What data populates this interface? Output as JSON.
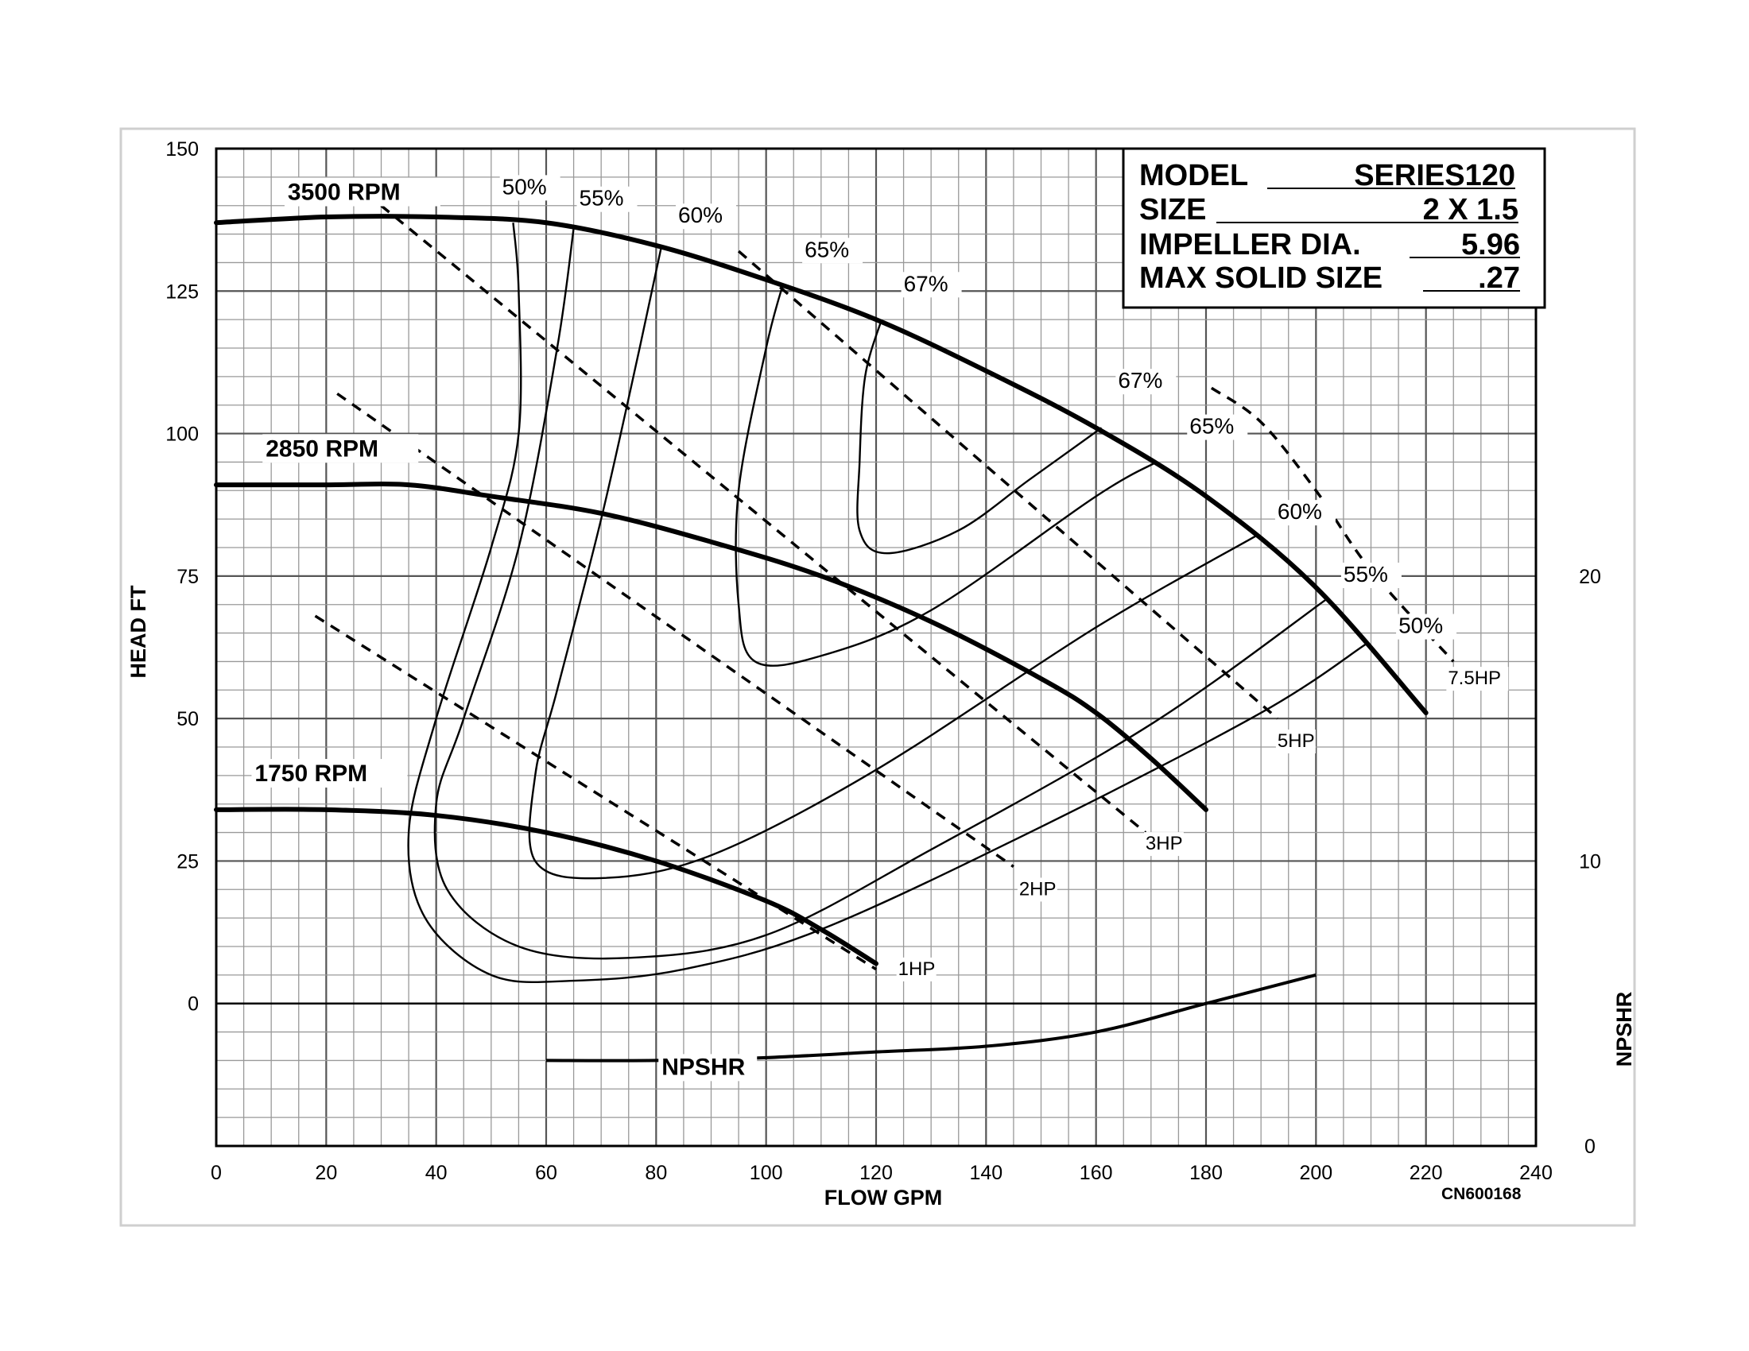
{
  "chart_data": {
    "type": "line",
    "xlabel": "FLOW GPM",
    "ylabel": "HEAD FT",
    "y2label": "NPSHR",
    "xlim": [
      0,
      240
    ],
    "ylim": [
      -25,
      150
    ],
    "y2lim": [
      0,
      35
    ],
    "xticks": [
      "0",
      "20",
      "40",
      "60",
      "80",
      "100",
      "120",
      "140",
      "160",
      "180",
      "200",
      "220",
      "240"
    ],
    "yticks": [
      "150",
      "125",
      "100",
      "75",
      "50",
      "25",
      "0"
    ],
    "y2ticks": [
      "20",
      "10",
      "0"
    ],
    "grid": true,
    "info_box": {
      "model_label": "MODEL",
      "model_value": "SERIES120",
      "size_label": "SIZE",
      "size_value": "2 X 1.5",
      "impeller_label": "IMPELLER DIA.",
      "impeller_value": "5.96",
      "solid_label": "MAX SOLID SIZE",
      "solid_value": ".27"
    },
    "code": "CN600168",
    "rpm_curves": [
      {
        "name": "3500 RPM",
        "points": [
          [
            0,
            137
          ],
          [
            20,
            138
          ],
          [
            40,
            138
          ],
          [
            60,
            137
          ],
          [
            80,
            133
          ],
          [
            100,
            127
          ],
          [
            120,
            120
          ],
          [
            140,
            111
          ],
          [
            160,
            101
          ],
          [
            180,
            89
          ],
          [
            200,
            73
          ],
          [
            220,
            51
          ]
        ]
      },
      {
        "name": "2850 RPM",
        "points": [
          [
            0,
            91
          ],
          [
            20,
            91
          ],
          [
            35,
            91
          ],
          [
            50,
            89
          ],
          [
            70,
            86
          ],
          [
            90,
            81
          ],
          [
            110,
            75
          ],
          [
            130,
            67
          ],
          [
            150,
            57
          ],
          [
            160,
            51
          ],
          [
            170,
            43
          ],
          [
            180,
            34
          ]
        ]
      },
      {
        "name": "1750 RPM",
        "points": [
          [
            0,
            34
          ],
          [
            20,
            34
          ],
          [
            40,
            33
          ],
          [
            60,
            30
          ],
          [
            80,
            25
          ],
          [
            100,
            18
          ],
          [
            110,
            13
          ],
          [
            120,
            7
          ]
        ]
      }
    ],
    "efficiency_curves": [
      {
        "name": "50%",
        "points": [
          [
            54,
            137
          ],
          [
            55,
            125
          ],
          [
            55,
            100
          ],
          [
            50,
            80
          ],
          [
            40,
            50
          ],
          [
            35,
            30
          ],
          [
            38,
            15
          ],
          [
            50,
            5
          ],
          [
            65,
            4
          ],
          [
            85,
            6
          ],
          [
            110,
            13
          ],
          [
            150,
            31
          ],
          [
            190,
            51
          ],
          [
            209,
            63
          ]
        ]
      },
      {
        "name": "55%",
        "points": [
          [
            65,
            136
          ],
          [
            62,
            115
          ],
          [
            55,
            80
          ],
          [
            45,
            50
          ],
          [
            40,
            35
          ],
          [
            42,
            20
          ],
          [
            55,
            10
          ],
          [
            75,
            8
          ],
          [
            100,
            12
          ],
          [
            130,
            27
          ],
          [
            170,
            49
          ],
          [
            202,
            71
          ]
        ]
      },
      {
        "name": "60%",
        "points": [
          [
            81,
            133
          ],
          [
            77,
            115
          ],
          [
            70,
            85
          ],
          [
            62,
            55
          ],
          [
            58,
            40
          ],
          [
            58,
            25
          ],
          [
            70,
            22
          ],
          [
            90,
            26
          ],
          [
            120,
            41
          ],
          [
            160,
            66
          ],
          [
            189,
            82
          ]
        ]
      },
      {
        "name": "65%",
        "points": [
          [
            103,
            126
          ],
          [
            100,
            115
          ],
          [
            95,
            90
          ],
          [
            95,
            70
          ],
          [
            98,
            60
          ],
          [
            110,
            61
          ],
          [
            130,
            69
          ],
          [
            160,
            89
          ],
          [
            171,
            95
          ]
        ]
      },
      {
        "name": "67%",
        "points": [
          [
            121,
            120
          ],
          [
            118,
            110
          ],
          [
            117,
            95
          ],
          [
            117,
            83
          ],
          [
            122,
            79
          ],
          [
            135,
            83
          ],
          [
            148,
            92
          ],
          [
            161,
            101
          ]
        ]
      }
    ],
    "efficiency_labels": [
      {
        "text": "50%",
        "x": 52,
        "y": 142
      },
      {
        "text": "55%",
        "x": 66,
        "y": 140
      },
      {
        "text": "60%",
        "x": 84,
        "y": 137
      },
      {
        "text": "65%",
        "x": 107,
        "y": 131
      },
      {
        "text": "67%",
        "x": 125,
        "y": 125
      },
      {
        "text": "67%",
        "x": 164,
        "y": 108
      },
      {
        "text": "65%",
        "x": 177,
        "y": 100
      },
      {
        "text": "60%",
        "x": 193,
        "y": 85
      },
      {
        "text": "55%",
        "x": 205,
        "y": 74
      },
      {
        "text": "50%",
        "x": 215,
        "y": 65
      }
    ],
    "hp_lines": [
      {
        "name": "1HP",
        "points": [
          [
            18,
            68
          ],
          [
            120,
            6
          ]
        ],
        "label_at": [
          124,
          5
        ]
      },
      {
        "name": "2HP",
        "points": [
          [
            22,
            107
          ],
          [
            145,
            24
          ]
        ],
        "label_at": [
          146,
          19
        ]
      },
      {
        "name": "3HP",
        "points": [
          [
            30,
            140
          ],
          [
            169,
            30
          ]
        ],
        "label_at": [
          169,
          27
        ]
      },
      {
        "name": "5HP",
        "points": [
          [
            95,
            132
          ],
          [
            193,
            50
          ]
        ],
        "label_at": [
          193,
          45
        ]
      },
      {
        "name": "7.5HP",
        "points": [
          [
            181,
            108
          ],
          [
            190,
            102
          ],
          [
            200,
            90
          ],
          [
            210,
            76
          ],
          [
            225,
            60
          ]
        ],
        "label_at": [
          224,
          56
        ]
      }
    ],
    "npshr": {
      "name": "NPSHR",
      "points": [
        [
          60,
          -10
        ],
        [
          80,
          -10
        ],
        [
          100,
          -9.5
        ],
        [
          120,
          -8.5
        ],
        [
          140,
          -7.5
        ],
        [
          160,
          -5
        ],
        [
          180,
          0
        ],
        [
          200,
          5
        ]
      ]
    }
  }
}
